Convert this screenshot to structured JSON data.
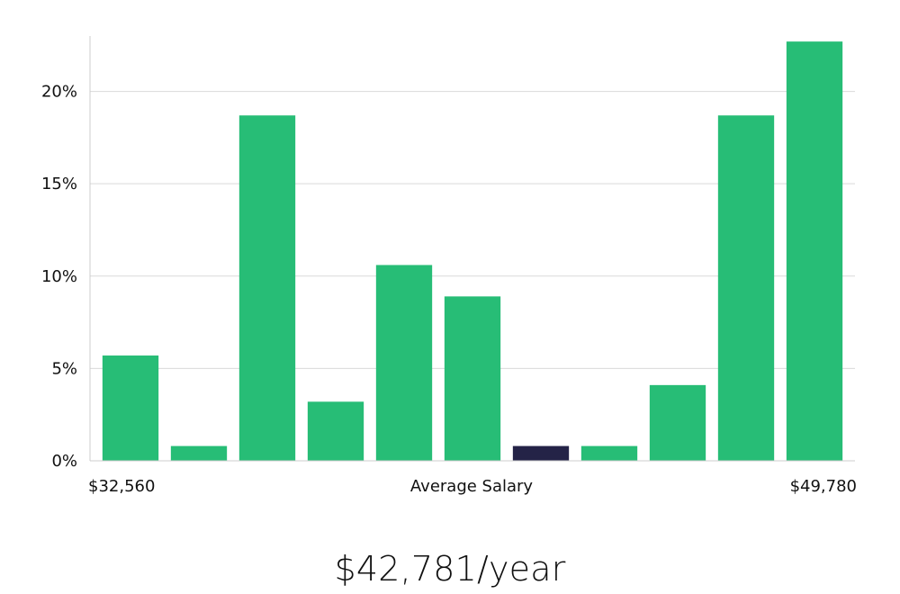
{
  "chart_data": {
    "type": "bar",
    "title": "",
    "xlabel": "Average Salary",
    "ylabel": "",
    "x_min_label": "$32,560",
    "x_max_label": "$49,780",
    "ylim": [
      0,
      23
    ],
    "yticks": [
      0,
      5,
      10,
      15,
      20
    ],
    "ytick_labels": [
      "0%",
      "5%",
      "10%",
      "15%",
      "20%"
    ],
    "values": [
      5.7,
      0.8,
      18.7,
      3.2,
      10.6,
      8.9,
      0.8,
      0.8,
      4.1,
      18.7,
      22.7
    ],
    "highlight_index": 6,
    "grid": true
  },
  "colors": {
    "bar": "#27bd76",
    "highlight": "#242347",
    "grid": "#d9d9d9",
    "axis": "#cccccc"
  },
  "summary": {
    "salary": "$42,781/year"
  }
}
